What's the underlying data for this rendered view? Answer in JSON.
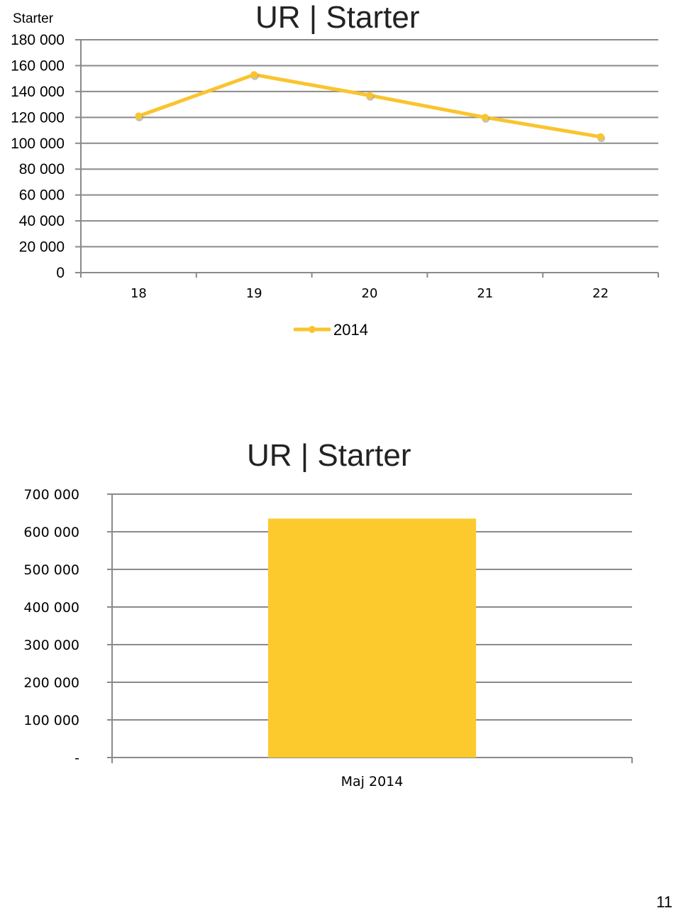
{
  "page": {
    "label": "Starter",
    "number": "11"
  },
  "colors": {
    "series": "#f9c42e",
    "bar": "#fdca2d",
    "grid": "#8a8a8a"
  },
  "chart_data": [
    {
      "type": "line",
      "title": "UR | Starter",
      "x": [
        "18",
        "19",
        "20",
        "21",
        "22"
      ],
      "series": [
        {
          "name": "2014",
          "values": [
            121000,
            153000,
            137000,
            120000,
            105000
          ]
        }
      ],
      "ylim": [
        0,
        180000
      ],
      "yticks": [
        "0",
        "20 000",
        "40 000",
        "60 000",
        "80 000",
        "100 000",
        "120 000",
        "140 000",
        "160 000",
        "180 000"
      ],
      "grid": true,
      "legend": "bottom"
    },
    {
      "type": "bar",
      "title": "UR | Starter",
      "categories": [
        "Maj 2014"
      ],
      "values": [
        635000
      ],
      "ylim": [
        0,
        700000
      ],
      "yticks": [
        "-",
        "100 000",
        "200 000",
        "300 000",
        "400 000",
        "500 000",
        "600 000",
        "700 000"
      ],
      "grid": true
    }
  ]
}
